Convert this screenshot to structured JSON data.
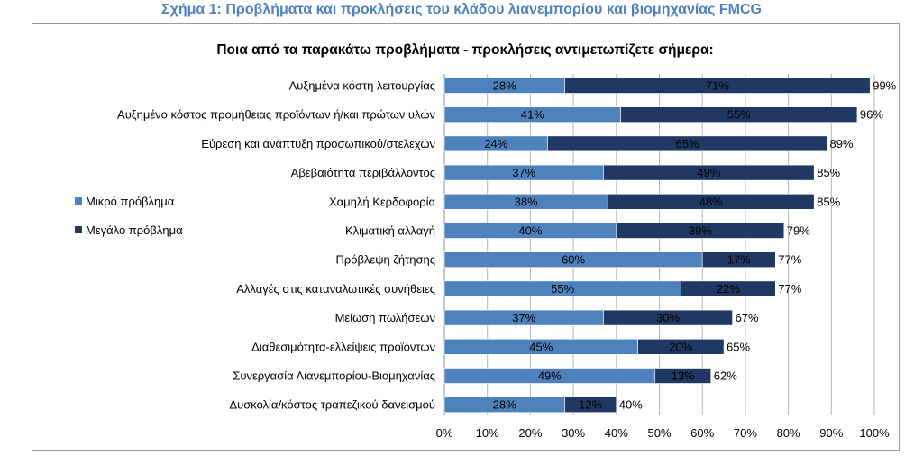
{
  "figure_caption": "Σχήμα 1: Προβλήματα και προκλήσεις του κλάδου λιανεμπορίου και βιομηχανίας FMCG",
  "chart_data": {
    "type": "bar",
    "orientation": "horizontal",
    "stacked": true,
    "title": "Ποια από τα παρακάτω προβλήματα - προκλήσεις αντιμετωπίζετε σήμερα:",
    "categories": [
      "Αυξημένα κόστη λειτουργίας",
      "Αυξημένο κόστος προμήθειας προϊόντων ή/και πρώτων υλών",
      "Εύρεση και ανάπτυξη προσωπικού/στελεχών",
      "Αβεβαιότητα περιβάλλοντος",
      "Χαμηλή Κερδοφορία",
      "Κλιματική αλλαγή",
      "Πρόβλεψη ζήτησης",
      "Αλλαγές στις καταναλωτικές συνήθειες",
      "Μείωση πωλήσεων",
      "Διαθεσιμότητα-ελλείψεις προϊόντων",
      "Συνεργασία Λιανεμπορίου-Βιομηχανίας",
      "Δυσκολία/κόστος τραπεζικού δανεισμού"
    ],
    "series": [
      {
        "name": "Μικρό πρόβλημα",
        "color": "#4f81bd",
        "values": [
          28,
          41,
          24,
          37,
          38,
          40,
          60,
          55,
          37,
          45,
          49,
          28
        ],
        "labels": [
          "28%",
          "41%",
          "24%",
          "37%",
          "38%",
          "40%",
          "60%",
          "55%",
          "37%",
          "45%",
          "49%",
          "28%"
        ]
      },
      {
        "name": "Μεγάλο πρόβλημα",
        "color": "#1f3864",
        "values": [
          71,
          55,
          65,
          49,
          48,
          39,
          17,
          22,
          30,
          20,
          13,
          12
        ],
        "labels": [
          "71%",
          "55%",
          "65%",
          "49%",
          "48%",
          "39%",
          "17%",
          "22%",
          "30%",
          "20%",
          "13%",
          "12%"
        ]
      }
    ],
    "totals": [
      99,
      96,
      89,
      85,
      85,
      79,
      77,
      77,
      67,
      65,
      62,
      40
    ],
    "total_labels": [
      "99%",
      "96%",
      "89%",
      "85%",
      "85%",
      "79%",
      "77%",
      "77%",
      "67%",
      "65%",
      "62%",
      "40%"
    ],
    "x_ticks": [
      "0%",
      "10%",
      "20%",
      "30%",
      "40%",
      "50%",
      "60%",
      "70%",
      "80%",
      "90%",
      "100%"
    ],
    "xlim": [
      0,
      100
    ],
    "grid": true,
    "legend_position": "left"
  }
}
